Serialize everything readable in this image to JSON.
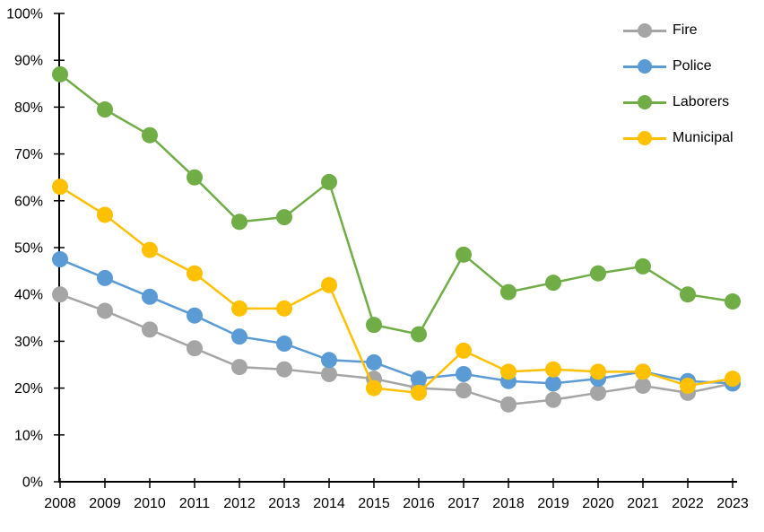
{
  "chart_data": {
    "type": "line",
    "title": "",
    "categories": [
      2008,
      2009,
      2010,
      2011,
      2012,
      2013,
      2014,
      2015,
      2016,
      2017,
      2018,
      2019,
      2020,
      2021,
      2022,
      2023
    ],
    "x_tick_labels": [
      "2008",
      "2009",
      "2010",
      "2011",
      "2012",
      "2013",
      "2014",
      "2015",
      "2016",
      "2017",
      "2018",
      "2019",
      "2020",
      "2021",
      "2022",
      "2023"
    ],
    "y_ticks": [
      "0%",
      "10%",
      "20%",
      "30%",
      "40%",
      "50%",
      "60%",
      "70%",
      "80%",
      "90%",
      "100%"
    ],
    "ylim": [
      0,
      100
    ],
    "grid": false,
    "legend_position": "top-right",
    "axis_color": "#000000",
    "background": "#FFFFFF",
    "series": [
      {
        "name": "Fire",
        "color": "#A5A5A5",
        "values": [
          40,
          36.5,
          32.5,
          28.5,
          24.5,
          24,
          23,
          22,
          20,
          19.5,
          16.5,
          17.5,
          19,
          20.5,
          19,
          21
        ]
      },
      {
        "name": "Police",
        "color": "#5B9BD5",
        "values": [
          47.5,
          43.5,
          39.5,
          35.5,
          31,
          29.5,
          26,
          25.5,
          22,
          23,
          21.5,
          21,
          22,
          23.5,
          21.5,
          21
        ]
      },
      {
        "name": "Laborers",
        "color": "#70AD47",
        "values": [
          87,
          79.5,
          74,
          65,
          55.5,
          56.5,
          64,
          33.5,
          31.5,
          48.5,
          40.5,
          42.5,
          44.5,
          46,
          40,
          38.5
        ]
      },
      {
        "name": "Municipal",
        "color": "#FFC000",
        "values": [
          63,
          57,
          49.5,
          44.5,
          37,
          37,
          42,
          20,
          19,
          28,
          23.5,
          24,
          23.5,
          23.5,
          20.5,
          22
        ]
      }
    ]
  }
}
